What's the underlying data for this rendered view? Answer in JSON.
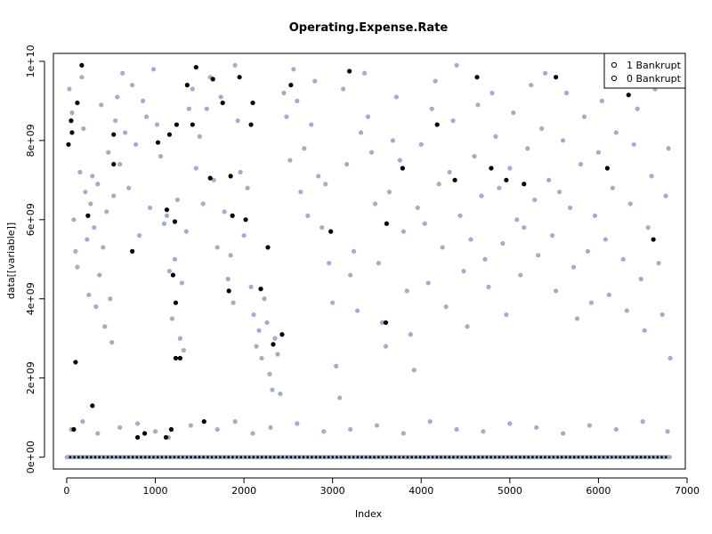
{
  "chart_data": {
    "type": "scatter",
    "title": "Operating.Expense.Rate",
    "xlabel": "Index",
    "ylabel": "data[[variable]]",
    "xlim": [
      -150,
      6980
    ],
    "ylim": [
      -300000000,
      10200000000
    ],
    "xticks": [
      0,
      1000,
      2000,
      3000,
      4000,
      5000,
      6000,
      7000
    ],
    "xtick_labels": [
      "0",
      "1000",
      "2000",
      "3000",
      "4000",
      "5000",
      "6000",
      "7000"
    ],
    "yticks": [
      0,
      2000000000,
      4000000000,
      6000000000,
      8000000000,
      10000000000
    ],
    "ytick_labels": [
      "0e+00",
      "2e+09",
      "4e+09",
      "6e+09",
      "8e+09",
      "1e+10"
    ],
    "grid": false,
    "legend_position": "top-right",
    "colors": {
      "bankrupt_1": "#000000",
      "bankrupt_0": "#a2adc9"
    },
    "series": [
      {
        "name": "0 Bankrupt",
        "color": "#a2adc9",
        "points": [
          [
            30,
            9300000000
          ],
          [
            60,
            8700000000
          ],
          [
            80,
            6000000000
          ],
          [
            100,
            5200000000
          ],
          [
            120,
            4800000000
          ],
          [
            150,
            7200000000
          ],
          [
            170,
            9600000000
          ],
          [
            190,
            8300000000
          ],
          [
            210,
            6700000000
          ],
          [
            230,
            5500000000
          ],
          [
            250,
            4100000000
          ],
          [
            270,
            6400000000
          ],
          [
            290,
            7100000000
          ],
          [
            310,
            5800000000
          ],
          [
            330,
            3800000000
          ],
          [
            350,
            6900000000
          ],
          [
            370,
            4600000000
          ],
          [
            390,
            8900000000
          ],
          [
            410,
            5300000000
          ],
          [
            430,
            3300000000
          ],
          [
            450,
            6200000000
          ],
          [
            470,
            7700000000
          ],
          [
            490,
            4000000000
          ],
          [
            510,
            2900000000
          ],
          [
            530,
            6600000000
          ],
          [
            550,
            8500000000
          ],
          [
            570,
            9100000000
          ],
          [
            600,
            7400000000
          ],
          [
            630,
            9700000000
          ],
          [
            660,
            8200000000
          ],
          [
            700,
            6800000000
          ],
          [
            740,
            9400000000
          ],
          [
            780,
            7900000000
          ],
          [
            820,
            5600000000
          ],
          [
            860,
            9000000000
          ],
          [
            900,
            8600000000
          ],
          [
            940,
            6300000000
          ],
          [
            980,
            9800000000
          ],
          [
            1020,
            8400000000
          ],
          [
            1060,
            7600000000
          ],
          [
            1100,
            5900000000
          ],
          [
            1130,
            6100000000
          ],
          [
            1160,
            4700000000
          ],
          [
            1190,
            3500000000
          ],
          [
            1220,
            5000000000
          ],
          [
            1250,
            6500000000
          ],
          [
            1280,
            3000000000
          ],
          [
            1300,
            4400000000
          ],
          [
            1320,
            2700000000
          ],
          [
            1350,
            5700000000
          ],
          [
            1380,
            8800000000
          ],
          [
            1420,
            9300000000
          ],
          [
            1460,
            7300000000
          ],
          [
            1500,
            8100000000
          ],
          [
            1540,
            6400000000
          ],
          [
            1580,
            8800000000
          ],
          [
            1620,
            9600000000
          ],
          [
            1660,
            7000000000
          ],
          [
            1700,
            5300000000
          ],
          [
            1740,
            9100000000
          ],
          [
            1780,
            6200000000
          ],
          [
            1820,
            4500000000
          ],
          [
            1850,
            5100000000
          ],
          [
            1880,
            3900000000
          ],
          [
            1900,
            9900000000
          ],
          [
            1930,
            8500000000
          ],
          [
            1960,
            7200000000
          ],
          [
            2000,
            5600000000
          ],
          [
            2040,
            6800000000
          ],
          [
            2080,
            4300000000
          ],
          [
            2110,
            3600000000
          ],
          [
            2140,
            2800000000
          ],
          [
            2170,
            3200000000
          ],
          [
            2200,
            2500000000
          ],
          [
            2230,
            4000000000
          ],
          [
            2260,
            3400000000
          ],
          [
            2290,
            2100000000
          ],
          [
            2320,
            1700000000
          ],
          [
            2350,
            3000000000
          ],
          [
            2380,
            2600000000
          ],
          [
            2410,
            1600000000
          ],
          [
            2450,
            9200000000
          ],
          [
            2480,
            8600000000
          ],
          [
            2520,
            7500000000
          ],
          [
            2560,
            9800000000
          ],
          [
            2600,
            9000000000
          ],
          [
            2640,
            6700000000
          ],
          [
            2680,
            7800000000
          ],
          [
            2720,
            6100000000
          ],
          [
            2760,
            8400000000
          ],
          [
            2800,
            9500000000
          ],
          [
            2840,
            7100000000
          ],
          [
            2880,
            5800000000
          ],
          [
            2920,
            6900000000
          ],
          [
            2960,
            4900000000
          ],
          [
            3000,
            3900000000
          ],
          [
            3040,
            2300000000
          ],
          [
            3080,
            1500000000
          ],
          [
            3120,
            9300000000
          ],
          [
            3160,
            7400000000
          ],
          [
            3200,
            4600000000
          ],
          [
            3240,
            5200000000
          ],
          [
            3280,
            3700000000
          ],
          [
            3320,
            8200000000
          ],
          [
            3360,
            9700000000
          ],
          [
            3400,
            8600000000
          ],
          [
            3440,
            7700000000
          ],
          [
            3480,
            6400000000
          ],
          [
            3520,
            4900000000
          ],
          [
            3560,
            3400000000
          ],
          [
            3600,
            2800000000
          ],
          [
            3640,
            6700000000
          ],
          [
            3680,
            8000000000
          ],
          [
            3720,
            9100000000
          ],
          [
            3760,
            7500000000
          ],
          [
            3800,
            5700000000
          ],
          [
            3840,
            4200000000
          ],
          [
            3880,
            3100000000
          ],
          [
            3920,
            2200000000
          ],
          [
            3960,
            6300000000
          ],
          [
            4000,
            7900000000
          ],
          [
            4040,
            5900000000
          ],
          [
            4080,
            4400000000
          ],
          [
            4120,
            8800000000
          ],
          [
            4160,
            9500000000
          ],
          [
            4200,
            6900000000
          ],
          [
            4240,
            5300000000
          ],
          [
            4280,
            3800000000
          ],
          [
            4320,
            7200000000
          ],
          [
            4360,
            8500000000
          ],
          [
            4400,
            9900000000
          ],
          [
            4440,
            6100000000
          ],
          [
            4480,
            4700000000
          ],
          [
            4520,
            3300000000
          ],
          [
            4560,
            5500000000
          ],
          [
            4600,
            7600000000
          ],
          [
            4640,
            8900000000
          ],
          [
            4680,
            6600000000
          ],
          [
            4720,
            5000000000
          ],
          [
            4760,
            4300000000
          ],
          [
            4800,
            9200000000
          ],
          [
            4840,
            8100000000
          ],
          [
            4880,
            6800000000
          ],
          [
            4920,
            5400000000
          ],
          [
            4960,
            3600000000
          ],
          [
            5000,
            7300000000
          ],
          [
            5040,
            8700000000
          ],
          [
            5080,
            6000000000
          ],
          [
            5120,
            4600000000
          ],
          [
            5160,
            5800000000
          ],
          [
            5200,
            7800000000
          ],
          [
            5240,
            9400000000
          ],
          [
            5280,
            6500000000
          ],
          [
            5320,
            5100000000
          ],
          [
            5360,
            8300000000
          ],
          [
            5400,
            9700000000
          ],
          [
            5440,
            7000000000
          ],
          [
            5480,
            5600000000
          ],
          [
            5520,
            4200000000
          ],
          [
            5560,
            6700000000
          ],
          [
            5600,
            8000000000
          ],
          [
            5640,
            9200000000
          ],
          [
            5680,
            6300000000
          ],
          [
            5720,
            4800000000
          ],
          [
            5760,
            3500000000
          ],
          [
            5800,
            7400000000
          ],
          [
            5840,
            8600000000
          ],
          [
            5880,
            5200000000
          ],
          [
            5920,
            3900000000
          ],
          [
            5960,
            6100000000
          ],
          [
            6000,
            7700000000
          ],
          [
            6040,
            9000000000
          ],
          [
            6080,
            5500000000
          ],
          [
            6120,
            4100000000
          ],
          [
            6160,
            6800000000
          ],
          [
            6200,
            8200000000
          ],
          [
            6240,
            9500000000
          ],
          [
            6280,
            5000000000
          ],
          [
            6320,
            3700000000
          ],
          [
            6360,
            6400000000
          ],
          [
            6400,
            7900000000
          ],
          [
            6440,
            8800000000
          ],
          [
            6480,
            4500000000
          ],
          [
            6520,
            3200000000
          ],
          [
            6560,
            5800000000
          ],
          [
            6600,
            7100000000
          ],
          [
            6640,
            9300000000
          ],
          [
            6680,
            4900000000
          ],
          [
            6720,
            3600000000
          ],
          [
            6760,
            6600000000
          ],
          [
            6790,
            7800000000
          ],
          [
            6810,
            2500000000
          ],
          [
            50,
            700000000
          ],
          [
            180,
            900000000
          ],
          [
            350,
            600000000
          ],
          [
            600,
            750000000
          ],
          [
            800,
            850000000
          ],
          [
            1000,
            650000000
          ],
          [
            1150,
            500000000
          ],
          [
            1400,
            800000000
          ],
          [
            1700,
            700000000
          ],
          [
            1900,
            900000000
          ],
          [
            2100,
            600000000
          ],
          [
            2300,
            750000000
          ],
          [
            2600,
            850000000
          ],
          [
            2900,
            650000000
          ],
          [
            3200,
            700000000
          ],
          [
            3500,
            800000000
          ],
          [
            3800,
            600000000
          ],
          [
            4100,
            900000000
          ],
          [
            4400,
            700000000
          ],
          [
            4700,
            650000000
          ],
          [
            5000,
            850000000
          ],
          [
            5300,
            750000000
          ],
          [
            5600,
            600000000
          ],
          [
            5900,
            800000000
          ],
          [
            6200,
            700000000
          ],
          [
            6500,
            900000000
          ],
          [
            6780,
            650000000
          ]
        ]
      },
      {
        "name": "1 Bankrupt",
        "color": "#000000",
        "points": [
          [
            20,
            7900000000
          ],
          [
            50,
            8500000000
          ],
          [
            60,
            8200000000
          ],
          [
            80,
            700000000
          ],
          [
            100,
            2400000000
          ],
          [
            120,
            8950000000
          ],
          [
            170,
            9900000000
          ],
          [
            240,
            6100000000
          ],
          [
            290,
            1300000000
          ],
          [
            530,
            7400000000
          ],
          [
            530,
            8150000000
          ],
          [
            740,
            5200000000
          ],
          [
            800,
            500000000
          ],
          [
            880,
            600000000
          ],
          [
            1030,
            7950000000
          ],
          [
            1120,
            500000000
          ],
          [
            1130,
            6250000000
          ],
          [
            1160,
            8150000000
          ],
          [
            1180,
            700000000
          ],
          [
            1200,
            4600000000
          ],
          [
            1230,
            2500000000
          ],
          [
            1230,
            3900000000
          ],
          [
            1240,
            8400000000
          ],
          [
            1280,
            2500000000
          ],
          [
            1360,
            9400000000
          ],
          [
            1420,
            8400000000
          ],
          [
            1460,
            9850000000
          ],
          [
            1550,
            900000000
          ],
          [
            1620,
            7050000000
          ],
          [
            1650,
            9550000000
          ],
          [
            1760,
            8950000000
          ],
          [
            1830,
            4200000000
          ],
          [
            1850,
            7100000000
          ],
          [
            1870,
            6100000000
          ],
          [
            1950,
            9600000000
          ],
          [
            2020,
            6000000000
          ],
          [
            2080,
            8400000000
          ],
          [
            2100,
            8950000000
          ],
          [
            2190,
            4250000000
          ],
          [
            2270,
            5300000000
          ],
          [
            2330,
            2850000000
          ],
          [
            2430,
            3100000000
          ],
          [
            2530,
            9400000000
          ],
          [
            2980,
            5700000000
          ],
          [
            3190,
            9750000000
          ],
          [
            3600,
            3400000000
          ],
          [
            3610,
            5900000000
          ],
          [
            3790,
            7300000000
          ],
          [
            4180,
            8400000000
          ],
          [
            4380,
            7000000000
          ],
          [
            4790,
            7300000000
          ],
          [
            4960,
            7000000000
          ],
          [
            5160,
            6900000000
          ],
          [
            5520,
            9600000000
          ],
          [
            6100,
            7300000000
          ],
          [
            6340,
            9150000000
          ],
          [
            6620,
            5500000000
          ],
          [
            1220,
            5950000000
          ],
          [
            4630,
            9600000000
          ]
        ]
      }
    ]
  },
  "legend": {
    "items": [
      {
        "marker": "o",
        "label": "1 Bankrupt"
      },
      {
        "marker": "o",
        "label": "0 Bankrupt"
      }
    ]
  }
}
